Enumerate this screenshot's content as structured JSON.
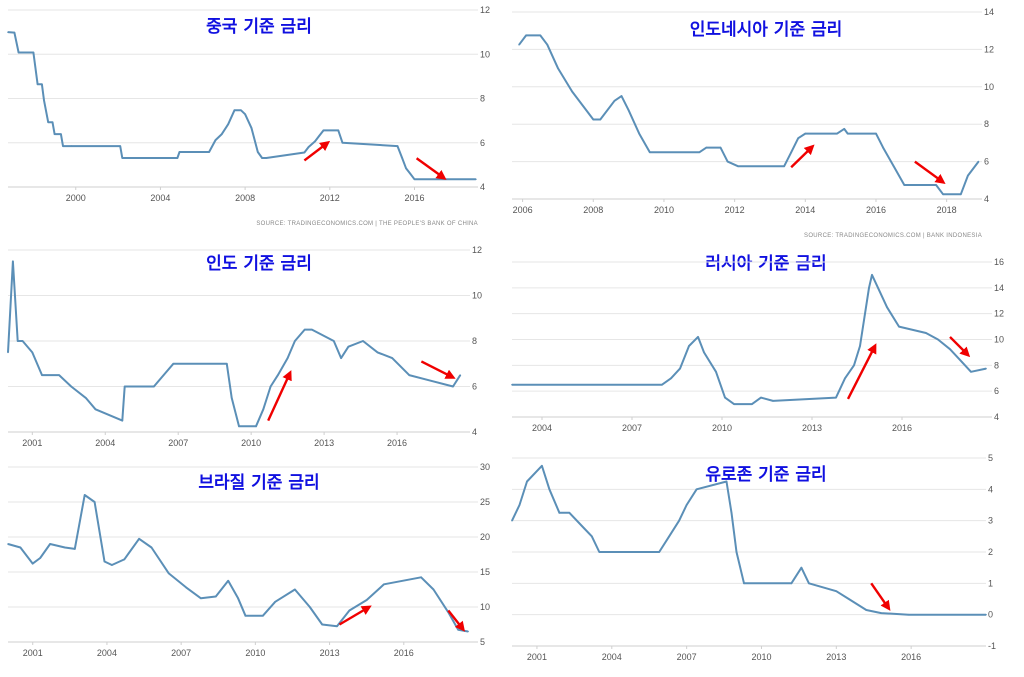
{
  "colors": {
    "line": "#5b8fb7",
    "arrow": "#f00000",
    "title": "#1010e0",
    "grid": "#e6e6e6",
    "axis": "#cfcfcf"
  },
  "chart_data": [
    {
      "id": "china",
      "type": "line",
      "title": "중국 기준 금리",
      "source": "SOURCE: TRADINGECONOMICS.COM | THE PEOPLE'S BANK OF CHINA",
      "xlim": [
        1996.8,
        2019.0
      ],
      "ylim": [
        4,
        12
      ],
      "x_ticks": [
        "2000",
        "2004",
        "2008",
        "2012",
        "2016"
      ],
      "x_tick_values": [
        2000,
        2004,
        2008,
        2012,
        2016
      ],
      "y_ticks": [
        "4",
        "6",
        "8",
        "10",
        "12"
      ],
      "y_tick_values": [
        4,
        6,
        8,
        10,
        12
      ],
      "x": [
        1996.8,
        1997.1,
        1997.3,
        1997.5,
        1998.0,
        1998.2,
        1998.4,
        1998.5,
        1998.7,
        1998.9,
        1999.0,
        1999.3,
        1999.4,
        1999.8,
        2002.1,
        2002.2,
        2004.8,
        2004.9,
        2006.3,
        2006.6,
        2006.9,
        2007.2,
        2007.5,
        2007.8,
        2008.0,
        2008.3,
        2008.6,
        2008.8,
        2009.0,
        2010.8,
        2011.0,
        2011.3,
        2011.5,
        2011.7,
        2012.4,
        2012.6,
        2015.2,
        2015.4,
        2015.6,
        2015.8,
        2016.0,
        2018.9
      ],
      "y": [
        11.0,
        10.98,
        10.08,
        10.08,
        10.08,
        8.64,
        8.64,
        7.92,
        6.93,
        6.93,
        6.39,
        6.39,
        5.85,
        5.85,
        5.85,
        5.31,
        5.31,
        5.58,
        5.58,
        6.12,
        6.39,
        6.84,
        7.47,
        7.47,
        7.29,
        6.66,
        5.58,
        5.31,
        5.31,
        5.56,
        5.81,
        6.06,
        6.31,
        6.56,
        6.56,
        6.0,
        5.85,
        5.35,
        4.85,
        4.6,
        4.35,
        4.35
      ],
      "arrows": [
        {
          "from": [
            2010.8,
            5.2
          ],
          "to": [
            2011.9,
            6.0
          ]
        },
        {
          "from": [
            2016.1,
            5.3
          ],
          "to": [
            2017.4,
            4.4
          ]
        }
      ]
    },
    {
      "id": "indonesia",
      "type": "line",
      "title": "인도네시아 기준 금리",
      "source": "SOURCE: TRADINGECONOMICS.COM | BANK INDONESIA",
      "xlim": [
        2005.7,
        2019.0
      ],
      "ylim": [
        4,
        14
      ],
      "x_ticks": [
        "2006",
        "2008",
        "2010",
        "2012",
        "2014",
        "2016",
        "2018"
      ],
      "x_tick_values": [
        2006,
        2008,
        2010,
        2012,
        2014,
        2016,
        2018
      ],
      "y_ticks": [
        "4",
        "6",
        "8",
        "10",
        "12",
        "14"
      ],
      "y_tick_values": [
        4,
        6,
        8,
        10,
        12,
        14
      ],
      "x": [
        2005.9,
        2006.1,
        2006.5,
        2006.7,
        2007.0,
        2007.4,
        2007.7,
        2008.0,
        2008.2,
        2008.6,
        2008.8,
        2009.0,
        2009.3,
        2009.6,
        2011.0,
        2011.2,
        2011.6,
        2011.8,
        2012.1,
        2013.4,
        2013.6,
        2013.8,
        2014.0,
        2014.9,
        2015.1,
        2015.2,
        2016.0,
        2016.2,
        2016.5,
        2016.8,
        2017.7,
        2017.9,
        2018.4,
        2018.6,
        2018.9
      ],
      "y": [
        12.25,
        12.75,
        12.75,
        12.25,
        11.0,
        9.75,
        9.0,
        8.25,
        8.25,
        9.25,
        9.5,
        8.75,
        7.5,
        6.5,
        6.5,
        6.75,
        6.75,
        6.0,
        5.75,
        5.75,
        6.5,
        7.25,
        7.5,
        7.5,
        7.75,
        7.5,
        7.5,
        6.75,
        5.75,
        4.75,
        4.75,
        4.25,
        4.25,
        5.25,
        6.0
      ],
      "arrows": [
        {
          "from": [
            2013.6,
            5.7
          ],
          "to": [
            2014.2,
            6.8
          ]
        },
        {
          "from": [
            2017.1,
            6.0
          ],
          "to": [
            2017.9,
            4.9
          ]
        }
      ]
    },
    {
      "id": "india",
      "type": "line",
      "title": "인도 기준 금리",
      "source": "",
      "xlim": [
        2000.0,
        2019.0
      ],
      "ylim": [
        4,
        12
      ],
      "x_ticks": [
        "2001",
        "2004",
        "2007",
        "2010",
        "2013",
        "2016"
      ],
      "x_tick_values": [
        2001,
        2004,
        2007,
        2010,
        2013,
        2016
      ],
      "y_ticks": [
        "4",
        "6",
        "8",
        "10",
        "12"
      ],
      "y_tick_values": [
        4,
        6,
        8,
        10,
        12
      ],
      "x": [
        2000.0,
        2000.2,
        2000.4,
        2000.6,
        2001.0,
        2001.4,
        2002.1,
        2002.6,
        2003.2,
        2003.6,
        2004.7,
        2004.8,
        2006.0,
        2006.4,
        2006.8,
        2009.0,
        2009.2,
        2009.5,
        2010.2,
        2010.5,
        2010.8,
        2011.1,
        2011.5,
        2011.8,
        2012.2,
        2012.5,
        2013.4,
        2013.7,
        2014.0,
        2014.6,
        2015.2,
        2015.8,
        2016.5,
        2017.4,
        2018.3,
        2018.6
      ],
      "y": [
        7.5,
        11.5,
        8.0,
        8.0,
        7.5,
        6.5,
        6.5,
        6.0,
        5.5,
        5.0,
        4.5,
        6.0,
        6.0,
        6.5,
        7.0,
        7.0,
        5.5,
        4.25,
        4.25,
        5.0,
        6.0,
        6.5,
        7.25,
        8.0,
        8.5,
        8.5,
        8.0,
        7.25,
        7.75,
        8.0,
        7.5,
        7.25,
        6.5,
        6.25,
        6.0,
        6.5
      ],
      "arrows": [
        {
          "from": [
            2010.7,
            4.5
          ],
          "to": [
            2011.6,
            6.6
          ]
        },
        {
          "from": [
            2017.0,
            7.1
          ],
          "to": [
            2018.3,
            6.4
          ]
        }
      ]
    },
    {
      "id": "russia",
      "type": "line",
      "title": "러시아 기준 금리",
      "source": "",
      "xlim": [
        2003.0,
        2019.0
      ],
      "ylim": [
        4,
        16
      ],
      "x_ticks": [
        "2004",
        "2007",
        "2010",
        "2013",
        "2016"
      ],
      "x_tick_values": [
        2004,
        2007,
        2010,
        2013,
        2016
      ],
      "y_ticks": [
        "4",
        "6",
        "8",
        "10",
        "12",
        "14",
        "16"
      ],
      "y_tick_values": [
        4,
        6,
        8,
        10,
        12,
        14,
        16
      ],
      "x": [
        2003.0,
        2008.0,
        2008.3,
        2008.6,
        2008.9,
        2009.2,
        2009.4,
        2009.8,
        2010.1,
        2010.4,
        2011.0,
        2011.3,
        2011.7,
        2013.8,
        2014.1,
        2014.4,
        2014.6,
        2014.9,
        2015.0,
        2015.2,
        2015.5,
        2015.9,
        2016.8,
        2017.2,
        2017.6,
        2018.0,
        2018.3,
        2018.8
      ],
      "y": [
        6.5,
        6.5,
        7.0,
        7.75,
        9.5,
        10.2,
        9.0,
        7.5,
        5.5,
        5.0,
        5.0,
        5.5,
        5.25,
        5.5,
        7.0,
        8.0,
        9.5,
        14.0,
        15.0,
        14.0,
        12.5,
        11.0,
        10.5,
        10.0,
        9.25,
        8.25,
        7.5,
        7.75
      ],
      "arrows": [
        {
          "from": [
            2014.2,
            5.4
          ],
          "to": [
            2015.1,
            9.5
          ]
        },
        {
          "from": [
            2017.6,
            10.2
          ],
          "to": [
            2018.2,
            8.8
          ]
        }
      ]
    },
    {
      "id": "brazil",
      "type": "line",
      "title": "브라질 기준 금리",
      "source": "",
      "xlim": [
        2000.0,
        2019.0
      ],
      "ylim": [
        5,
        30
      ],
      "x_ticks": [
        "2001",
        "2004",
        "2007",
        "2010",
        "2013",
        "2016"
      ],
      "x_tick_values": [
        2001,
        2004,
        2007,
        2010,
        2013,
        2016
      ],
      "y_ticks": [
        "5",
        "10",
        "15",
        "20",
        "25",
        "30"
      ],
      "y_tick_values": [
        5,
        10,
        15,
        20,
        25,
        30
      ],
      "x": [
        2000.0,
        2000.5,
        2001.0,
        2001.3,
        2001.7,
        2002.3,
        2002.7,
        2003.1,
        2003.5,
        2003.9,
        2004.2,
        2004.7,
        2005.3,
        2005.8,
        2006.5,
        2007.2,
        2007.8,
        2008.4,
        2008.9,
        2009.3,
        2009.6,
        2010.3,
        2010.8,
        2011.6,
        2012.2,
        2012.7,
        2013.3,
        2013.8,
        2014.5,
        2015.2,
        2016.7,
        2017.2,
        2017.8,
        2018.2,
        2018.6
      ],
      "y": [
        19,
        18.5,
        16.2,
        17.0,
        19.0,
        18.5,
        18.3,
        26.0,
        25.0,
        16.5,
        16.0,
        16.8,
        19.75,
        18.5,
        14.8,
        12.8,
        11.25,
        11.5,
        13.75,
        11.25,
        8.75,
        8.75,
        10.75,
        12.5,
        10.0,
        7.5,
        7.25,
        9.5,
        11.0,
        13.25,
        14.25,
        12.5,
        9.25,
        6.75,
        6.5
      ],
      "arrows": [
        {
          "from": [
            2013.4,
            7.5
          ],
          "to": [
            2014.6,
            10.0
          ]
        },
        {
          "from": [
            2017.8,
            9.5
          ],
          "to": [
            2018.4,
            6.8
          ]
        }
      ]
    },
    {
      "id": "eurozone",
      "type": "line",
      "title": "유로존 기준 금리",
      "source": "",
      "xlim": [
        2000.0,
        2019.0
      ],
      "ylim": [
        -1,
        5
      ],
      "x_ticks": [
        "2001",
        "2004",
        "2007",
        "2010",
        "2013",
        "2016"
      ],
      "x_tick_values": [
        2001,
        2004,
        2007,
        2010,
        2013,
        2016
      ],
      "y_ticks": [
        "-1",
        "0",
        "1",
        "2",
        "3",
        "4",
        "5"
      ],
      "y_tick_values": [
        -1,
        0,
        1,
        2,
        3,
        4,
        5
      ],
      "x": [
        2000.0,
        2000.3,
        2000.6,
        2001.2,
        2001.5,
        2001.9,
        2002.3,
        2002.9,
        2003.2,
        2003.5,
        2005.9,
        2006.3,
        2006.7,
        2007.0,
        2007.4,
        2008.6,
        2008.8,
        2009.0,
        2009.3,
        2011.2,
        2011.6,
        2011.9,
        2013.0,
        2013.5,
        2014.2,
        2014.8,
        2015.9,
        2019.0
      ],
      "y": [
        3.0,
        3.5,
        4.25,
        4.75,
        4.0,
        3.25,
        3.25,
        2.75,
        2.5,
        2.0,
        2.0,
        2.5,
        3.0,
        3.5,
        4.0,
        4.25,
        3.25,
        2.0,
        1.0,
        1.0,
        1.5,
        1.0,
        0.75,
        0.5,
        0.15,
        0.05,
        0.0,
        0.0
      ],
      "arrows": [
        {
          "from": [
            2014.4,
            1.0
          ],
          "to": [
            2015.1,
            0.2
          ]
        }
      ]
    }
  ]
}
